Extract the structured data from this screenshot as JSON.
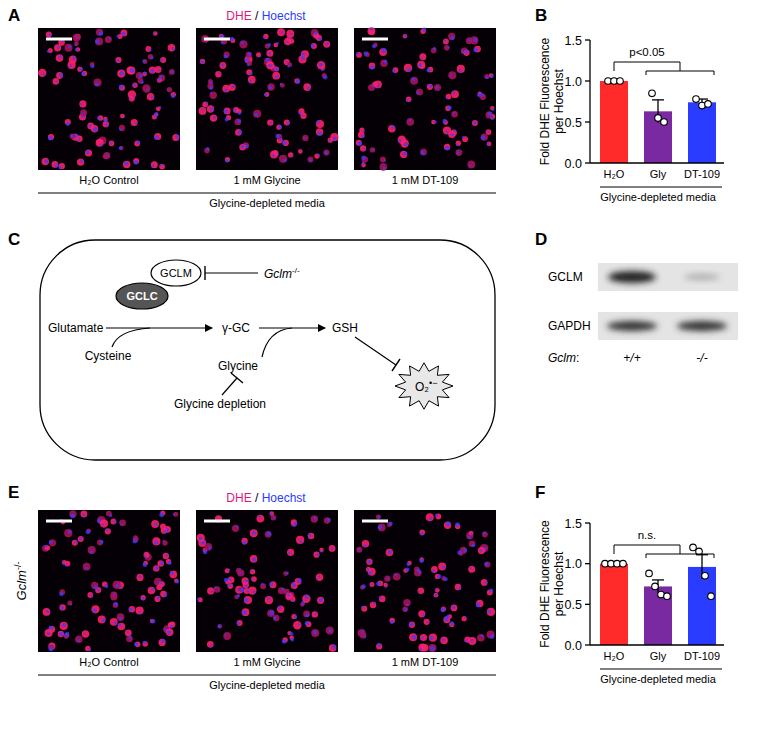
{
  "chart_data": [
    {
      "type": "bar",
      "categories": [
        "H₂O",
        "Gly",
        "DT-109"
      ],
      "values": [
        1.0,
        0.63,
        0.74
      ],
      "errors": [
        0,
        0.14,
        0.04
      ],
      "points": [
        [
          1.0,
          1.0,
          1.0
        ],
        [
          0.85,
          0.55,
          0.5
        ],
        [
          0.78,
          0.7,
          0.72
        ]
      ],
      "colors": [
        "#ff2b2b",
        "#7a2aa0",
        "#2a3cff"
      ],
      "y_label": [
        "Fold DHE Fluorescence",
        "per Hoechst"
      ],
      "group_label": "Glycine-depleted media",
      "significance": "p<0.05",
      "ylim": [
        0,
        1.5
      ],
      "yticks": [
        {
          "value": 0,
          "label": "0.0"
        },
        {
          "value": 0.5,
          "label": "0.5"
        },
        {
          "value": 1,
          "label": "1.0"
        },
        {
          "value": 1.5,
          "label": "1.5"
        }
      ]
    },
    {
      "type": "bar",
      "categories": [
        "H₂O",
        "Gly",
        "DT-109"
      ],
      "values": [
        1.0,
        0.72,
        0.96
      ],
      "errors": [
        0,
        0.08,
        0.15
      ],
      "points": [
        [
          1.0,
          1.0,
          1.0,
          1.0
        ],
        [
          0.88,
          0.72,
          0.62,
          0.6
        ],
        [
          1.2,
          1.15,
          0.85,
          0.6
        ]
      ],
      "colors": [
        "#ff2b2b",
        "#7a2aa0",
        "#2a3cff"
      ],
      "y_label": [
        "Fold DHE Fluorescence",
        "per Hoechst"
      ],
      "group_label": "Glycine-depleted media",
      "significance": "n.s.",
      "ylim": [
        0,
        1.5
      ],
      "yticks": [
        {
          "value": 0,
          "label": "0.0"
        },
        {
          "value": 0.5,
          "label": "0.5"
        },
        {
          "value": 1,
          "label": "1.0"
        },
        {
          "value": 1.5,
          "label": "1.5"
        }
      ]
    }
  ],
  "figure": {
    "panels": [
      "A",
      "B",
      "C",
      "D",
      "E",
      "F"
    ],
    "image_panels": [
      {
        "header": {
          "dhe": "DHE",
          "sep": " / ",
          "hoechst": "Hoechst"
        },
        "captions": [
          "H₂O Control",
          "1 mM Glycine",
          "1 mM DT-109"
        ],
        "group_label": "Glycine-depleted media"
      },
      {
        "header": {
          "dhe": "DHE",
          "sep": " / ",
          "hoechst": "Hoechst"
        },
        "side_label": {
          "gene": "Gclm",
          "sup": "-/-"
        },
        "captions": [
          "H₂O Control",
          "1 mM Glycine",
          "1 mM DT-109"
        ],
        "group_label": "Glycine-depleted media"
      }
    ],
    "diagram": {
      "gclm": "GCLM",
      "gclc": "GCLC",
      "knockout": {
        "gene": "Gclm",
        "sup": "-/-"
      },
      "glutamate": "Glutamate",
      "cysteine": "Cysteine",
      "gamma_gc": "γ-GC",
      "gsh": "GSH",
      "glycine": "Glycine",
      "depletion": "Glycine depletion",
      "superoxide": {
        "base": "O₂",
        "sup": "•−"
      }
    },
    "blot": {
      "rows": [
        "GCLM",
        "GAPDH"
      ],
      "genotype_label": {
        "gene": "Gclm",
        "suffix": ":"
      },
      "lanes": [
        "+/+",
        "-/-"
      ]
    }
  }
}
